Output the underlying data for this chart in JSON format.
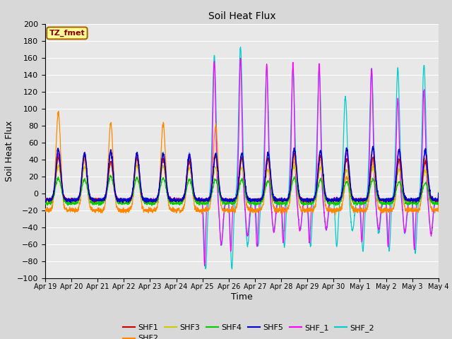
{
  "title": "Soil Heat Flux",
  "xlabel": "Time",
  "ylabel": "Soil Heat Flux",
  "ylim": [
    -100,
    200
  ],
  "yticks": [
    -100,
    -80,
    -60,
    -40,
    -20,
    0,
    20,
    40,
    60,
    80,
    100,
    120,
    140,
    160,
    180,
    200
  ],
  "xtick_labels": [
    "Apr 19",
    "Apr 20",
    "Apr 21",
    "Apr 22",
    "Apr 23",
    "Apr 24",
    "Apr 25",
    "Apr 26",
    "Apr 27",
    "Apr 28",
    "Apr 29",
    "Apr 30",
    "May 1",
    "May 2",
    "May 3",
    "May 4"
  ],
  "annotation_text": "TZ_fmet",
  "annotation_bg": "#FFFF99",
  "annotation_border": "#AA6600",
  "annotation_text_color": "#880000",
  "series_colors": {
    "SHF1": "#CC0000",
    "SHF2": "#FF8800",
    "SHF3": "#CCCC00",
    "SHF4": "#00CC00",
    "SHF5": "#0000CC",
    "SHF_1": "#FF00FF",
    "SHF_2": "#00CCCC"
  },
  "background_color": "#D8D8D8",
  "plot_bg": "#E8E8E8",
  "grid_color": "#FFFFFF",
  "n_days": 15,
  "points_per_day": 144,
  "shf2_peaks": [
    115,
    60,
    103,
    60,
    102,
    60,
    100,
    60,
    60,
    60,
    60,
    40,
    60,
    60,
    60
  ],
  "small_peaks": [
    60,
    55,
    58,
    55,
    55,
    52,
    55,
    55,
    55,
    60,
    58,
    60,
    62,
    60,
    58
  ],
  "cyan_peaks": [
    0,
    0,
    0,
    0,
    0,
    0,
    170,
    180,
    155,
    153,
    155,
    122,
    155,
    155,
    160
  ],
  "cyan_troughs": [
    0,
    0,
    0,
    0,
    0,
    0,
    -82,
    -82,
    -55,
    -55,
    -55,
    -55,
    -60,
    -60,
    -62
  ],
  "magenta_peaks": [
    0,
    0,
    0,
    0,
    0,
    0,
    165,
    167,
    160,
    162,
    160,
    0,
    155,
    120,
    130
  ],
  "magenta_troughs": [
    0,
    0,
    0,
    0,
    0,
    0,
    -75,
    -60,
    -55,
    -50,
    -50,
    0,
    -50,
    -55,
    -58
  ]
}
